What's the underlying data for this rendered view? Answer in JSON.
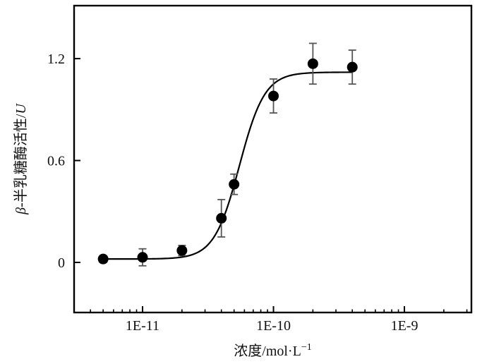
{
  "chart_data": {
    "type": "scatter",
    "title": "",
    "x_scale": "log",
    "grid": false,
    "legend": false,
    "xlabel": {
      "full": "浓度/mol·L⁻¹",
      "main": "浓度/mol·L",
      "sup": "−1"
    },
    "ylabel": {
      "full": "β-半乳糖酶活性/U",
      "beta": "β",
      "mid": "-半乳糖酶活性/",
      "unit": "U"
    },
    "xlim": [
      3e-12,
      3.25e-09
    ],
    "ylim": [
      -0.295,
      1.512
    ],
    "x_ticks": [
      {
        "value": 1e-11,
        "label": "1E-11"
      },
      {
        "value": 1e-10,
        "label": "1E-10"
      },
      {
        "value": 1e-09,
        "label": "1E-9"
      }
    ],
    "y_ticks": [
      {
        "value": 0,
        "label": "0"
      },
      {
        "value": 0.6,
        "label": "0.6"
      },
      {
        "value": 1.2,
        "label": "1.2"
      }
    ],
    "series": [
      {
        "name": "β-半乳糖酶活性",
        "marker": "filled-circle",
        "color": "#000000",
        "points": [
          {
            "x": 5e-12,
            "y": 0.02,
            "err": 0.02
          },
          {
            "x": 1e-11,
            "y": 0.03,
            "err": 0.05
          },
          {
            "x": 2e-11,
            "y": 0.07,
            "err": 0.03
          },
          {
            "x": 4e-11,
            "y": 0.26,
            "err": 0.11
          },
          {
            "x": 5e-11,
            "y": 0.46,
            "err": 0.06
          },
          {
            "x": 1e-10,
            "y": 0.98,
            "err": 0.1
          },
          {
            "x": 2e-10,
            "y": 1.17,
            "err": 0.12
          },
          {
            "x": 4e-10,
            "y": 1.15,
            "err": 0.1
          }
        ]
      }
    ],
    "fit_curve": {
      "model": "4PL-logistic(log10x)",
      "base": 0.02,
      "top": 1.12,
      "log_ec50": -10.26,
      "hill": 4.5,
      "color": "#000000"
    },
    "colors": {
      "frame": "#000000",
      "marker": "#000000",
      "error_bar": "#555555",
      "background": "#ffffff"
    }
  }
}
